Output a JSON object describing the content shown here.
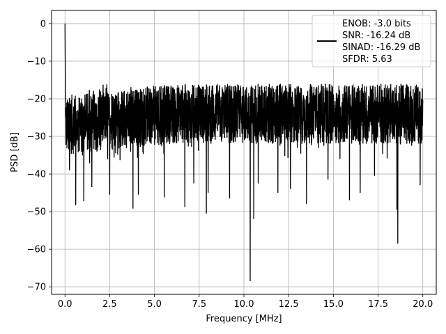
{
  "chart_data": {
    "type": "line",
    "xlabel": "Frequency [MHz]",
    "ylabel": "PSD [dB]",
    "xlim": [
      -0.75,
      20.75
    ],
    "ylim": [
      -72,
      3.5
    ],
    "xticks": [
      0.0,
      2.5,
      5.0,
      7.5,
      10.0,
      12.5,
      15.0,
      17.5,
      20.0
    ],
    "xtick_labels": [
      "0.0",
      "2.5",
      "5.0",
      "7.5",
      "10.0",
      "12.5",
      "15.0",
      "17.5",
      "20.0"
    ],
    "yticks": [
      0,
      -10,
      -20,
      -30,
      -40,
      -50,
      -60,
      -70
    ],
    "ytick_labels": [
      "0",
      "−10",
      "−20",
      "−30",
      "−40",
      "−50",
      "−60",
      "−70"
    ],
    "grid": true,
    "legend_position": "top-right",
    "line_color": "#000000",
    "series": [
      {
        "legend_lines": [
          "ENOB: -3.0 bits",
          "SNR: -16.24 dB",
          "SINAD: -16.29 dB",
          "SFDR: 5.63"
        ],
        "peak": {
          "x": 0.0,
          "y": 0.0
        },
        "noise_floor_band": {
          "upper": -16,
          "lower": -35
        },
        "deep_nulls": [
          {
            "x": 10.35,
            "y": -68.5
          },
          {
            "x": 18.6,
            "y": -58.5
          },
          {
            "x": 10.55,
            "y": -52.0
          },
          {
            "x": 7.9,
            "y": -50.5
          },
          {
            "x": 18.55,
            "y": -49.5
          },
          {
            "x": 3.8,
            "y": -49.2
          },
          {
            "x": 6.7,
            "y": -48.8
          },
          {
            "x": 0.6,
            "y": -48.3
          },
          {
            "x": 13.5,
            "y": -48.0
          },
          {
            "x": 1.05,
            "y": -47.2
          },
          {
            "x": 15.9,
            "y": -47.0
          },
          {
            "x": 4.1,
            "y": -45.5
          },
          {
            "x": 5.55,
            "y": -46.2
          },
          {
            "x": 9.2,
            "y": -46.5
          },
          {
            "x": 8.0,
            "y": -45.0
          },
          {
            "x": 11.9,
            "y": -45.0
          },
          {
            "x": 16.5,
            "y": -45.0
          },
          {
            "x": 2.5,
            "y": -45.5
          },
          {
            "x": 1.5,
            "y": -43.5
          },
          {
            "x": 12.6,
            "y": -44.0
          },
          {
            "x": 19.85,
            "y": -43.0
          },
          {
            "x": 7.2,
            "y": -42.5
          },
          {
            "x": 10.8,
            "y": -42.5
          },
          {
            "x": 14.7,
            "y": -41.5
          },
          {
            "x": 17.3,
            "y": -40.5
          },
          {
            "x": 0.25,
            "y": -39.0
          }
        ]
      }
    ]
  }
}
